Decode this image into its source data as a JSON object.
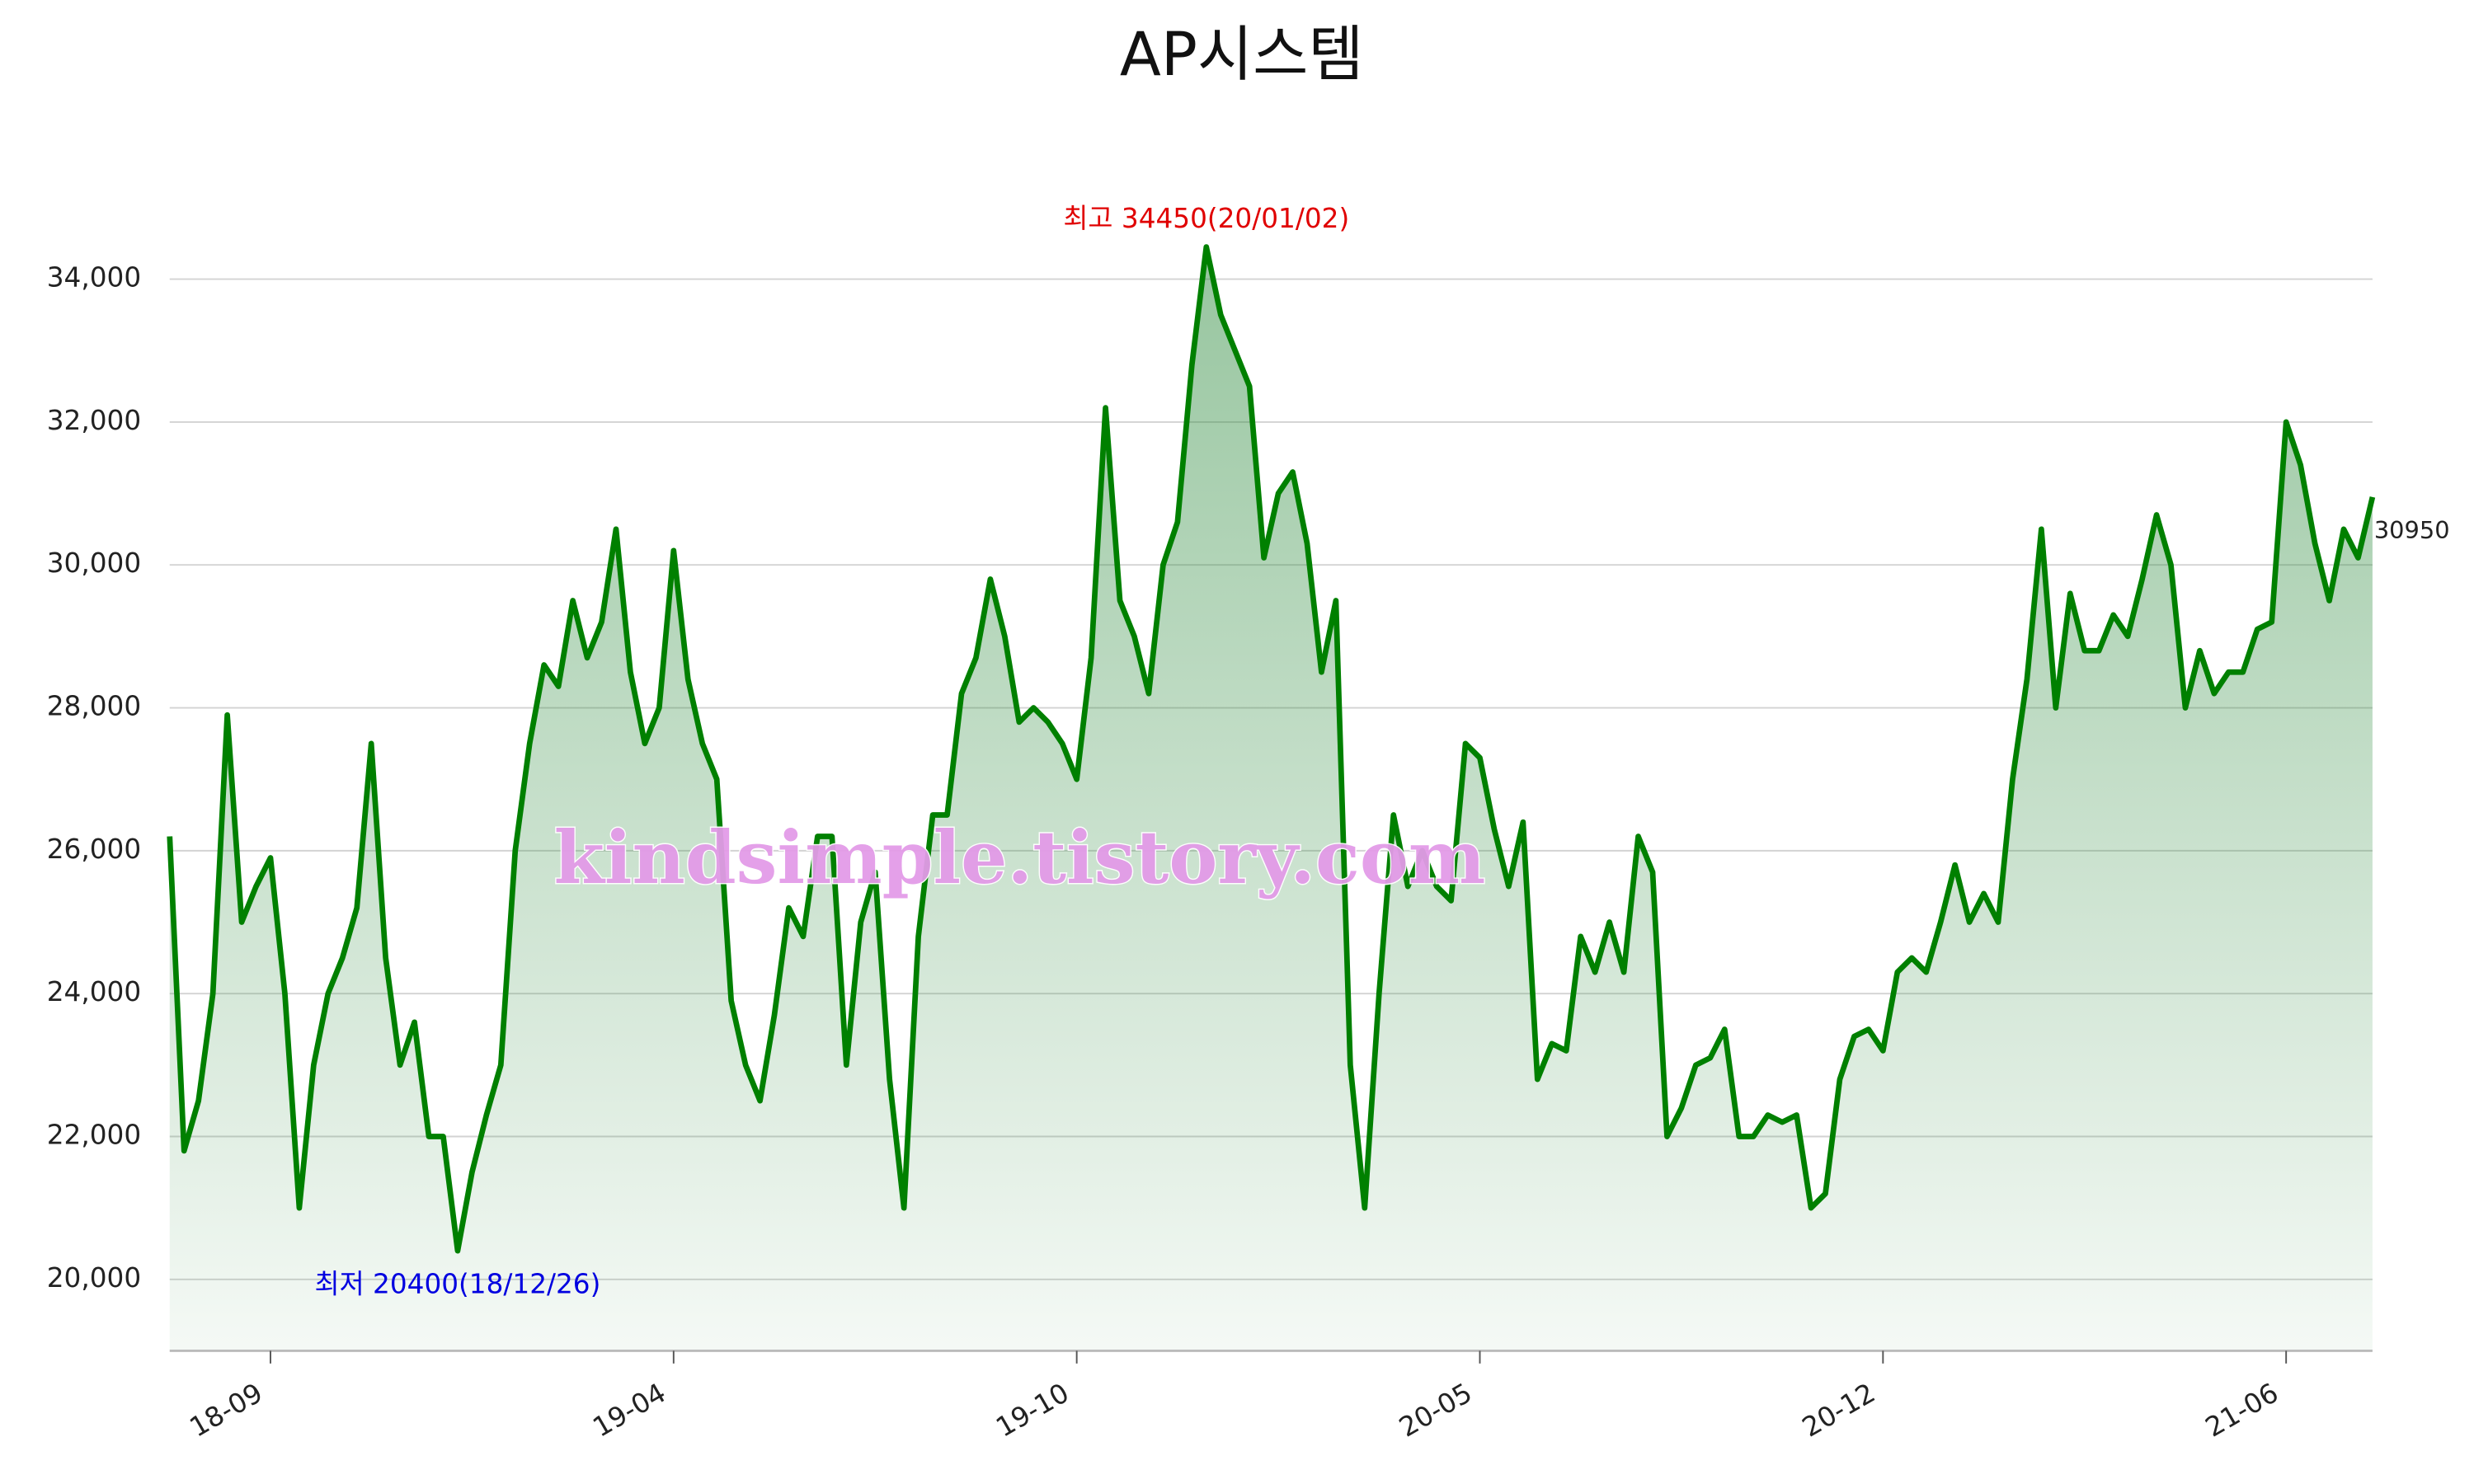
{
  "chart_data": {
    "type": "line",
    "title": "AP시스템",
    "watermark": "kindsimple.tistory.com",
    "annotations": {
      "max": "최고 34450(20/01/02)",
      "min": "최저 20400(18/12/26)"
    },
    "categories": [
      null,
      null,
      null,
      null,
      null,
      null,
      null,
      "18-09",
      null,
      null,
      null,
      null,
      null,
      null,
      null,
      null,
      null,
      null,
      null,
      null,
      null,
      null,
      null,
      null,
      null,
      null,
      null,
      null,
      null,
      null,
      null,
      null,
      null,
      null,
      null,
      "19-04",
      null,
      null,
      null,
      null,
      null,
      null,
      null,
      null,
      null,
      null,
      null,
      null,
      null,
      null,
      null,
      null,
      null,
      null,
      null,
      null,
      null,
      null,
      null,
      null,
      null,
      null,
      null,
      "19-10",
      null,
      null,
      null,
      null,
      null,
      null,
      null,
      null,
      null,
      null,
      null,
      null,
      null,
      null,
      null,
      null,
      null,
      null,
      null,
      null,
      null,
      null,
      null,
      null,
      null,
      null,
      null,
      "20-05",
      null,
      null,
      null,
      null,
      null,
      null,
      null,
      null,
      null,
      null,
      null,
      null,
      null,
      null,
      null,
      null,
      null,
      null,
      null,
      null,
      null,
      null,
      null,
      null,
      null,
      null,
      null,
      "20-12",
      null,
      null,
      null,
      null,
      null,
      null,
      null,
      null,
      null,
      null,
      null,
      null,
      null,
      null,
      null,
      null,
      null,
      null,
      null,
      null,
      null,
      null,
      null,
      null,
      null,
      null,
      null,
      "21-06",
      null,
      null,
      null,
      null,
      null,
      null
    ],
    "series": [
      {
        "name": "AP시스템",
        "color": "#008000",
        "values": [
          26200,
          21800,
          22500,
          24000,
          27900,
          25000,
          25500,
          25900,
          24000,
          21000,
          23000,
          24000,
          24500,
          25200,
          27500,
          24500,
          23000,
          23600,
          22000,
          22000,
          20400,
          21500,
          22300,
          23000,
          26000,
          27500,
          28600,
          28300,
          29500,
          28700,
          29200,
          30500,
          28500,
          27500,
          28000,
          30200,
          28400,
          27500,
          27000,
          23900,
          23000,
          22500,
          23700,
          25200,
          24800,
          26200,
          26200,
          23000,
          25000,
          25700,
          22800,
          21000,
          24800,
          26500,
          26500,
          28200,
          28700,
          29800,
          29000,
          27800,
          28000,
          27800,
          27500,
          27000,
          28700,
          32200,
          29500,
          29000,
          28200,
          30000,
          30600,
          32800,
          34450,
          33500,
          33000,
          32500,
          30100,
          31000,
          31300,
          30300,
          28500,
          29500,
          23000,
          21000,
          24000,
          26500,
          25500,
          26000,
          25500,
          25300,
          27500,
          27300,
          26300,
          25500,
          26400,
          22800,
          23300,
          23200,
          24800,
          24300,
          25000,
          24300,
          26200,
          25700,
          22000,
          22400,
          23000,
          23100,
          23500,
          22000,
          22000,
          22300,
          22200,
          22300,
          21000,
          21200,
          22800,
          23400,
          23500,
          23200,
          24300,
          24500,
          24300,
          25000,
          25800,
          25000,
          25400,
          25000,
          27000,
          28400,
          30500,
          28000,
          29600,
          28800,
          28800,
          29300,
          29000,
          29800,
          30700,
          30000,
          28000,
          28800,
          28200,
          28500,
          28500,
          29100,
          29200,
          32000,
          31400,
          30300,
          29500,
          30500,
          30100,
          30950
        ]
      }
    ],
    "ylim": [
      19000,
      35000
    ],
    "yticks": [
      {
        "value": 20000,
        "label": "20,000"
      },
      {
        "value": 22000,
        "label": "22,000"
      },
      {
        "value": 24000,
        "label": "24,000"
      },
      {
        "value": 26000,
        "label": "26,000"
      },
      {
        "value": 28000,
        "label": "28,000"
      },
      {
        "value": 30000,
        "label": "30,000"
      },
      {
        "value": 32000,
        "label": "32,000"
      },
      {
        "value": 34000,
        "label": "34,000"
      }
    ],
    "grid": true
  }
}
